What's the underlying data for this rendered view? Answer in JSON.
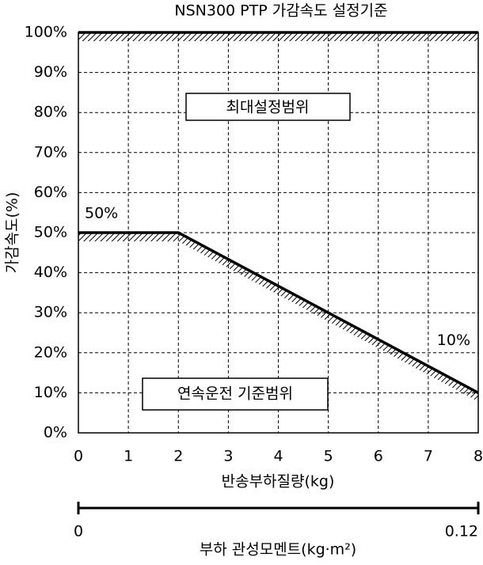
{
  "chart_data": {
    "type": "line",
    "title": "NSN300 PTP 가감속도 설정기준",
    "xlabel": "반송부하질량(kg)",
    "ylabel": "가감속도(%)",
    "x2label": "부하 관성모멘트(kg·m²)",
    "xlim": [
      0,
      8
    ],
    "xticks": [
      0,
      1,
      2,
      3,
      4,
      5,
      6,
      7,
      8
    ],
    "ylim": [
      0,
      100
    ],
    "yticks": [
      {
        "value": 0,
        "label": "0%"
      },
      {
        "value": 10,
        "label": "10%"
      },
      {
        "value": 20,
        "label": "20%"
      },
      {
        "value": 30,
        "label": "30%"
      },
      {
        "value": 40,
        "label": "40%"
      },
      {
        "value": 50,
        "label": "50%"
      },
      {
        "value": 60,
        "label": "60%"
      },
      {
        "value": 70,
        "label": "70%"
      },
      {
        "value": 80,
        "label": "80%"
      },
      {
        "value": 90,
        "label": "90%"
      },
      {
        "value": 100,
        "label": "100%"
      }
    ],
    "x2lim": [
      0,
      0.12
    ],
    "x2ticks": [
      0,
      0.12
    ],
    "grid": true,
    "series": [
      {
        "color": "#000000",
        "x": [
          0,
          8
        ],
        "values": [
          100,
          100
        ]
      },
      {
        "color": "#000000",
        "x": [
          0,
          2,
          8
        ],
        "values": [
          50,
          50,
          10
        ],
        "value_labels": [
          "50%",
          null,
          "10%"
        ]
      }
    ],
    "annotations": [
      "최대설정범위",
      "연속운전 기준범위"
    ]
  }
}
